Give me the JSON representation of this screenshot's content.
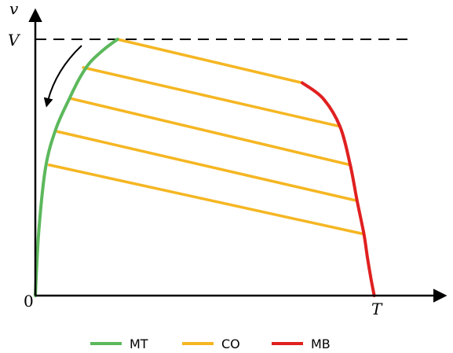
{
  "chart_data": {
    "type": "line",
    "xlabel": "T",
    "ylabel": "v",
    "y_marker_label": "V",
    "origin_label": "0",
    "xlim": [
      0,
      1
    ],
    "ylim": [
      0,
      1
    ],
    "legend_position": "bottom-center",
    "series": [
      {
        "name": "MT",
        "color": "#5cb85c",
        "x": [
          0.0,
          0.01,
          0.03,
          0.06,
          0.1,
          0.13,
          0.16,
          0.2,
          0.24
        ],
        "y": [
          0.0,
          0.25,
          0.5,
          0.65,
          0.77,
          0.85,
          0.91,
          0.96,
          1.0
        ]
      },
      {
        "name": "CO",
        "color": "#f5b622",
        "segments": [
          {
            "x": [
              0.24,
              0.78
            ],
            "y": [
              1.0,
              0.83
            ]
          },
          {
            "x": [
              0.14,
              0.89
            ],
            "y": [
              0.89,
              0.66
            ]
          },
          {
            "x": [
              0.1,
              0.92
            ],
            "y": [
              0.77,
              0.51
            ]
          },
          {
            "x": [
              0.065,
              0.94
            ],
            "y": [
              0.64,
              0.37
            ]
          },
          {
            "x": [
              0.04,
              0.96
            ],
            "y": [
              0.51,
              0.24
            ]
          }
        ]
      },
      {
        "name": "MB",
        "color": "#e02020",
        "x": [
          0.78,
          0.84,
          0.89,
          0.92,
          0.94,
          0.96,
          0.97,
          0.98,
          0.99
        ],
        "y": [
          0.83,
          0.77,
          0.66,
          0.51,
          0.37,
          0.24,
          0.15,
          0.07,
          0.0
        ]
      }
    ],
    "reference_line": {
      "y": 1.0,
      "style": "dashed",
      "color": "#000000"
    },
    "annotation": {
      "type": "curved-arrow",
      "direction": "down-left"
    }
  }
}
